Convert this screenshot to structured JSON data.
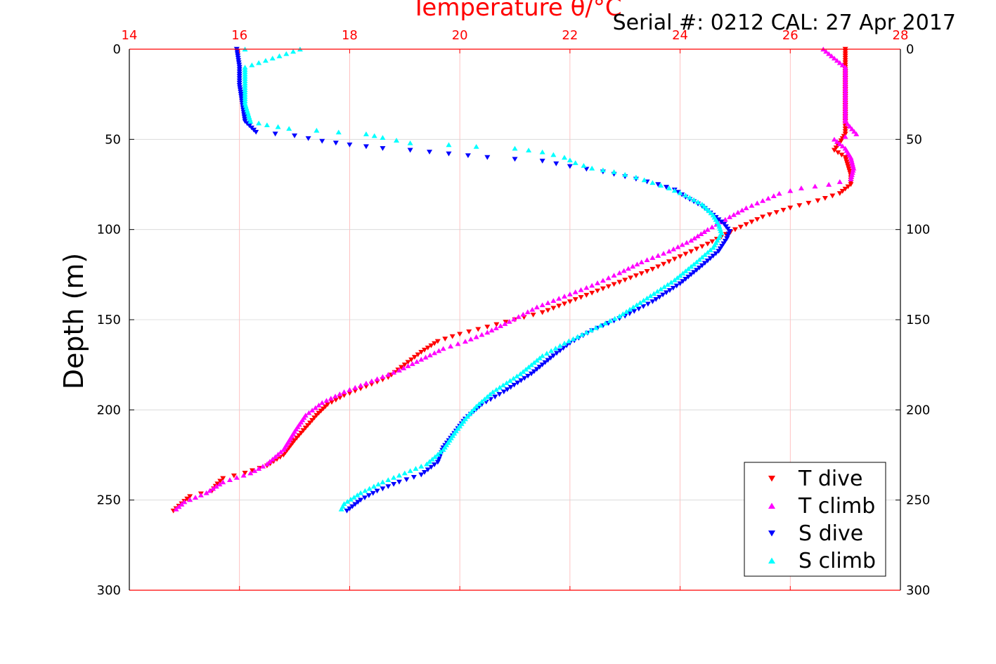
{
  "chart_data": {
    "type": "scatter",
    "title": "",
    "top_axis_label": "Temperature θ/°C",
    "subtitle": "Serial #: 0212  CAL: 27 Apr 2017",
    "ylabel": "Depth (m)",
    "xlim": [
      14,
      28
    ],
    "ylim": [
      0,
      300
    ],
    "y_reversed": true,
    "x_ticks": [
      "14",
      "16",
      "18",
      "20",
      "22",
      "24",
      "26",
      "28"
    ],
    "y_ticks": [
      "0",
      "50",
      "100",
      "150",
      "200",
      "250",
      "300"
    ],
    "grid": true,
    "legend_position": "bottom-right",
    "series": [
      {
        "name": "T dive",
        "color": "#ff0000",
        "marker": "triangle-down",
        "points": [
          [
            27.0,
            0
          ],
          [
            27.0,
            10
          ],
          [
            27.0,
            20
          ],
          [
            27.0,
            30
          ],
          [
            27.0,
            40
          ],
          [
            27.0,
            47
          ],
          [
            26.9,
            52
          ],
          [
            26.8,
            56
          ],
          [
            27.0,
            60
          ],
          [
            27.05,
            65
          ],
          [
            27.1,
            70
          ],
          [
            27.1,
            75
          ],
          [
            26.9,
            80
          ],
          [
            26.5,
            84
          ],
          [
            26.0,
            88
          ],
          [
            25.5,
            93
          ],
          [
            25.0,
            100
          ],
          [
            24.5,
            108
          ],
          [
            24.0,
            115
          ],
          [
            23.5,
            122
          ],
          [
            23.0,
            128
          ],
          [
            22.5,
            134
          ],
          [
            22.0,
            140
          ],
          [
            21.5,
            146
          ],
          [
            21.0,
            150
          ],
          [
            20.5,
            154
          ],
          [
            20.0,
            158
          ],
          [
            19.6,
            162
          ],
          [
            19.3,
            168
          ],
          [
            19.0,
            175
          ],
          [
            18.7,
            182
          ],
          [
            18.3,
            187
          ],
          [
            17.9,
            192
          ],
          [
            17.6,
            197
          ],
          [
            17.4,
            203
          ],
          [
            17.2,
            210
          ],
          [
            17.0,
            217
          ],
          [
            16.8,
            225
          ],
          [
            16.5,
            231
          ],
          [
            16.1,
            235
          ],
          [
            15.7,
            238
          ],
          [
            15.6,
            241
          ],
          [
            15.5,
            245
          ],
          [
            15.1,
            248
          ],
          [
            14.95,
            252
          ],
          [
            14.8,
            256
          ]
        ]
      },
      {
        "name": "T climb",
        "color": "#ff00ff",
        "marker": "triangle-up",
        "points": [
          [
            26.6,
            0
          ],
          [
            27.0,
            10
          ],
          [
            27.0,
            20
          ],
          [
            27.0,
            30
          ],
          [
            27.0,
            40
          ],
          [
            27.2,
            47
          ],
          [
            26.8,
            50
          ],
          [
            27.0,
            55
          ],
          [
            27.1,
            60
          ],
          [
            27.15,
            66
          ],
          [
            27.1,
            72
          ],
          [
            26.7,
            75
          ],
          [
            26.2,
            77
          ],
          [
            25.8,
            80
          ],
          [
            25.5,
            84
          ],
          [
            25.2,
            88
          ],
          [
            24.9,
            93
          ],
          [
            24.5,
            100
          ],
          [
            24.2,
            106
          ],
          [
            23.8,
            112
          ],
          [
            23.3,
            118
          ],
          [
            22.9,
            124
          ],
          [
            22.4,
            131
          ],
          [
            21.9,
            137
          ],
          [
            21.4,
            143
          ],
          [
            20.9,
            151
          ],
          [
            20.5,
            157
          ],
          [
            20.1,
            162
          ],
          [
            19.7,
            166
          ],
          [
            19.3,
            172
          ],
          [
            18.9,
            178
          ],
          [
            18.4,
            184
          ],
          [
            17.9,
            190
          ],
          [
            17.5,
            196
          ],
          [
            17.2,
            203
          ],
          [
            17.0,
            212
          ],
          [
            16.8,
            222
          ],
          [
            16.5,
            230
          ],
          [
            16.2,
            235
          ],
          [
            15.7,
            240
          ],
          [
            15.4,
            246
          ],
          [
            15.0,
            251
          ],
          [
            14.85,
            255
          ]
        ]
      },
      {
        "name": "S dive",
        "color": "#0000ff",
        "marker": "triangle-down",
        "points": [
          [
            15.95,
            0
          ],
          [
            16.0,
            10
          ],
          [
            16.0,
            20
          ],
          [
            16.05,
            30
          ],
          [
            16.1,
            40
          ],
          [
            16.3,
            46
          ],
          [
            17.0,
            48
          ],
          [
            17.5,
            51
          ],
          [
            18.0,
            53
          ],
          [
            18.6,
            55
          ],
          [
            19.1,
            56
          ],
          [
            19.8,
            58
          ],
          [
            20.5,
            60
          ],
          [
            21.5,
            62
          ],
          [
            22.0,
            65
          ],
          [
            22.6,
            68
          ],
          [
            23.2,
            72
          ],
          [
            23.6,
            75
          ],
          [
            23.9,
            78
          ],
          [
            24.1,
            82
          ],
          [
            24.4,
            87
          ],
          [
            24.6,
            92
          ],
          [
            24.8,
            97
          ],
          [
            24.9,
            101
          ],
          [
            24.85,
            105
          ],
          [
            24.7,
            112
          ],
          [
            24.4,
            120
          ],
          [
            24.0,
            130
          ],
          [
            23.5,
            140
          ],
          [
            23.0,
            148
          ],
          [
            22.4,
            156
          ],
          [
            22.0,
            163
          ],
          [
            21.7,
            170
          ],
          [
            21.3,
            180
          ],
          [
            20.8,
            190
          ],
          [
            20.4,
            197
          ],
          [
            20.1,
            205
          ],
          [
            19.9,
            213
          ],
          [
            19.7,
            221
          ],
          [
            19.6,
            229
          ],
          [
            19.3,
            236
          ],
          [
            18.9,
            240
          ],
          [
            18.5,
            245
          ],
          [
            18.2,
            250
          ],
          [
            17.95,
            256
          ]
        ]
      },
      {
        "name": "S climb",
        "color": "#00ffff",
        "marker": "triangle-up",
        "points": [
          [
            16.1,
            0
          ],
          [
            17.1,
            0
          ],
          [
            16.1,
            10
          ],
          [
            16.1,
            20
          ],
          [
            16.1,
            30
          ],
          [
            16.2,
            40
          ],
          [
            16.5,
            42
          ],
          [
            16.9,
            44
          ],
          [
            17.4,
            45
          ],
          [
            17.8,
            46
          ],
          [
            18.3,
            47
          ],
          [
            18.6,
            49
          ],
          [
            19.1,
            52
          ],
          [
            19.8,
            53
          ],
          [
            20.3,
            54
          ],
          [
            21.0,
            55
          ],
          [
            21.5,
            57
          ],
          [
            21.9,
            60
          ],
          [
            22.1,
            63
          ],
          [
            22.4,
            66
          ],
          [
            22.8,
            68
          ],
          [
            23.2,
            71
          ],
          [
            23.5,
            74
          ],
          [
            23.8,
            77
          ],
          [
            24.1,
            81
          ],
          [
            24.4,
            86
          ],
          [
            24.6,
            92
          ],
          [
            24.7,
            97
          ],
          [
            24.75,
            102
          ],
          [
            24.6,
            110
          ],
          [
            24.3,
            118
          ],
          [
            23.9,
            128
          ],
          [
            23.4,
            138
          ],
          [
            22.9,
            148
          ],
          [
            22.3,
            157
          ],
          [
            21.9,
            163
          ],
          [
            21.5,
            170
          ],
          [
            21.1,
            180
          ],
          [
            20.6,
            190
          ],
          [
            20.3,
            198
          ],
          [
            20.1,
            205
          ],
          [
            19.9,
            213
          ],
          [
            19.7,
            222
          ],
          [
            19.4,
            230
          ],
          [
            19.0,
            235
          ],
          [
            18.6,
            240
          ],
          [
            18.2,
            246
          ],
          [
            17.9,
            252
          ],
          [
            17.85,
            255
          ]
        ]
      }
    ]
  }
}
